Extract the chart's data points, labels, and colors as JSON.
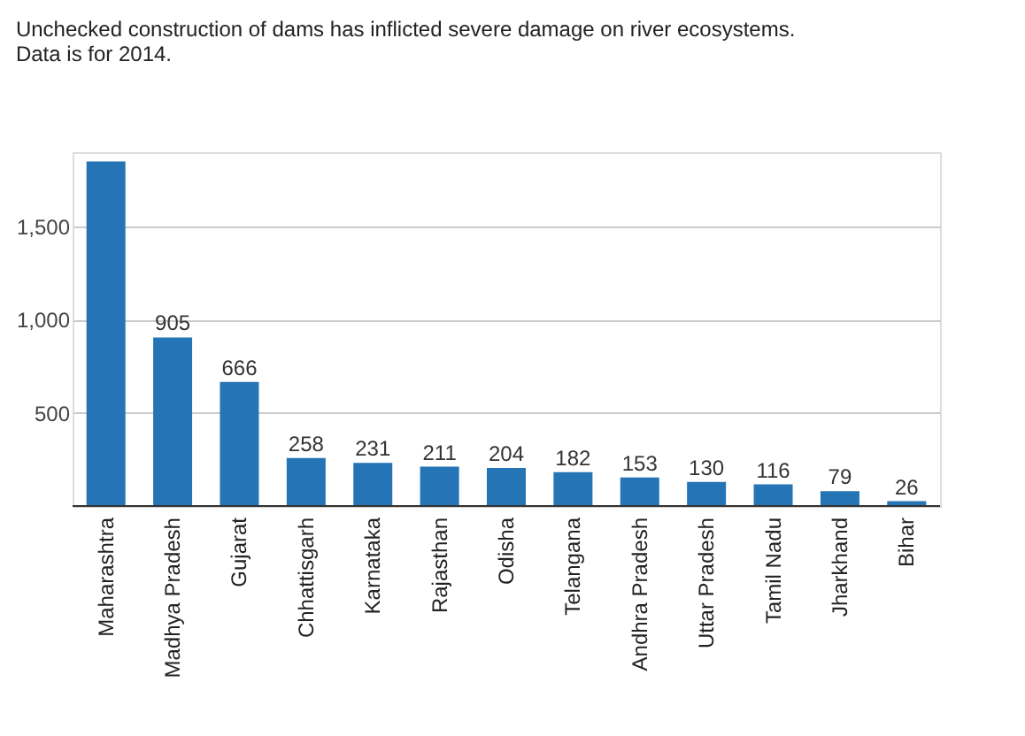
{
  "chart_data": {
    "type": "bar",
    "title": [
      "Unchecked construction of dams has inflicted severe damage on river ecosystems.",
      "Data is for 2014."
    ],
    "categories": [
      "Maharashtra",
      "Madhya Pradesh",
      "Gujarat",
      "Chhattisgarh",
      "Karnataka",
      "Rajasthan",
      "Odisha",
      "Telangana",
      "Andhra Pradesh",
      "Uttar Pradesh",
      "Tamil Nadu",
      "Jharkhand",
      "Bihar"
    ],
    "values": [
      1850,
      905,
      666,
      258,
      231,
      211,
      204,
      182,
      153,
      130,
      116,
      79,
      26
    ],
    "value_labels": [
      null,
      "905",
      "666",
      "258",
      "231",
      "211",
      "204",
      "182",
      "153",
      "130",
      "116",
      "79",
      "26"
    ],
    "color": "#2574b5",
    "ylim": [
      0,
      1900
    ],
    "yticks": [
      {
        "value": 0,
        "label": null
      },
      {
        "value": 500,
        "label": "500"
      },
      {
        "value": 1000,
        "label": "1,000"
      },
      {
        "value": 1500,
        "label": "1,500"
      }
    ],
    "grid": "y"
  }
}
